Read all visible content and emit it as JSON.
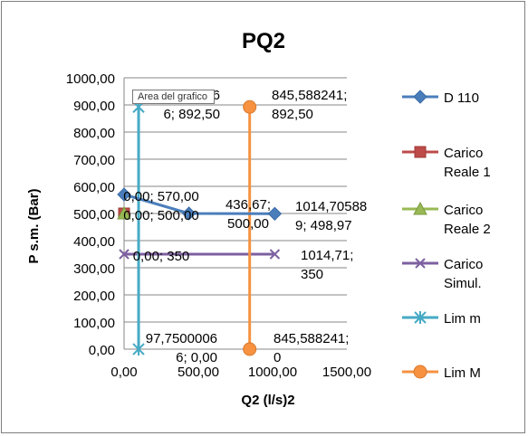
{
  "chart_data": {
    "type": "scatter",
    "title": "PQ2",
    "xlabel": "Q2 (l/s)2",
    "ylabel": "P s.m. (Bar)",
    "xlim": [
      0,
      1500
    ],
    "ylim": [
      0,
      1000
    ],
    "x_ticks": [
      "0,00",
      "500,00",
      "1000,00",
      "1500,00"
    ],
    "y_ticks": [
      "0,00",
      "100,00",
      "200,00",
      "300,00",
      "400,00",
      "500,00",
      "600,00",
      "700,00",
      "800,00",
      "900,00",
      "1000,00"
    ],
    "legend_position": "right",
    "grid": true,
    "tooltip": "Area del grafico",
    "series": [
      {
        "name": "D 110",
        "color": "#4a7ebb",
        "marker": "diamond",
        "points": [
          [
            0,
            570
          ],
          [
            436.67,
            500
          ],
          [
            1014.705889,
            498.97
          ]
        ]
      },
      {
        "name": "Carico Reale 1",
        "legend_lines": [
          "Carico",
          "Reale 1"
        ],
        "color": "#be4b48",
        "marker": "square",
        "points": [
          [
            0,
            500
          ]
        ]
      },
      {
        "name": "Carico Reale 2",
        "legend_lines": [
          "Carico",
          "Reale 2"
        ],
        "color": "#98b954",
        "marker": "triangle",
        "points": [
          [
            0,
            500
          ]
        ]
      },
      {
        "name": "Carico Simul.",
        "legend_lines": [
          "Carico",
          "Simul."
        ],
        "color": "#7d60a0",
        "marker": "x",
        "points": [
          [
            0,
            350
          ],
          [
            1014.71,
            350
          ]
        ]
      },
      {
        "name": "Lim m",
        "color": "#46aac5",
        "marker": "star",
        "points": [
          [
            97.75000066,
            0
          ],
          [
            97.75000066,
            892.5
          ]
        ]
      },
      {
        "name": "Lim M",
        "color": "#f69240",
        "marker": "circle",
        "points": [
          [
            845.588241,
            0
          ],
          [
            845.588241,
            892.5
          ]
        ]
      }
    ],
    "data_labels": [
      {
        "lines": [
          "0,00; 570,00"
        ]
      },
      {
        "lines": [
          "436,67;",
          "500,00"
        ]
      },
      {
        "lines": [
          "1014,70588",
          "9; 498,97"
        ]
      },
      {
        "lines": [
          "0,00; 500,00"
        ]
      },
      {
        "lines": [
          "0,00; 350"
        ]
      },
      {
        "lines": [
          "1014,71;",
          "350"
        ]
      },
      {
        "lines": [
          "97,7500006",
          "6; 892,50"
        ]
      },
      {
        "lines": [
          "845,588241;",
          "892,50"
        ]
      },
      {
        "lines": [
          "97,7500006",
          "6; 0,00"
        ]
      },
      {
        "lines": [
          "845,588241;",
          "0"
        ]
      }
    ]
  }
}
